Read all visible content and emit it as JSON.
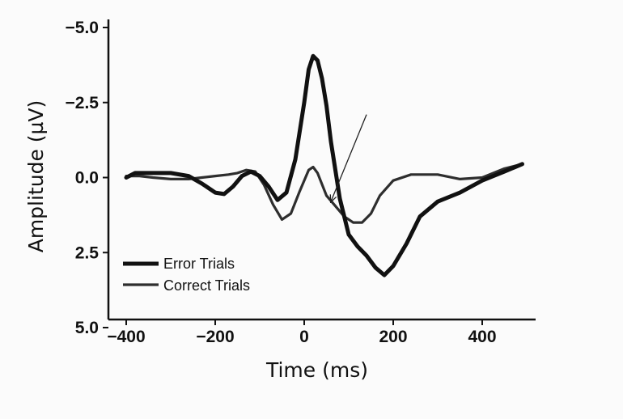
{
  "chart_data": {
    "type": "line",
    "xlabel": "Time (ms)",
    "ylabel": "Amplitude (µV)",
    "xlim": [
      -440,
      520
    ],
    "ylim": [
      -5.0,
      5.0
    ],
    "y_inverted": true,
    "x_ticks": [
      -400,
      -200,
      0,
      200,
      400
    ],
    "x_tick_labels": [
      "−400",
      "−200",
      "0",
      "200",
      "400"
    ],
    "y_ticks": [
      -5.0,
      -2.5,
      0.0,
      2.5,
      5.0
    ],
    "y_tick_labels": [
      "−5.0",
      "−2.5",
      "0.0",
      "2.5",
      "5.0"
    ],
    "grid": false,
    "legend_position": "bottom-left",
    "series": [
      {
        "name": "Error Trials",
        "color": "#111111",
        "stroke_weight": "thick",
        "x": [
          -400,
          -380,
          -350,
          -300,
          -260,
          -230,
          -200,
          -180,
          -160,
          -140,
          -120,
          -100,
          -80,
          -60,
          -40,
          -20,
          0,
          10,
          20,
          30,
          40,
          50,
          60,
          80,
          100,
          120,
          140,
          160,
          180,
          200,
          230,
          260,
          300,
          350,
          400,
          450,
          490
        ],
        "y": [
          0.0,
          -0.15,
          -0.15,
          -0.15,
          -0.05,
          0.2,
          0.5,
          0.55,
          0.3,
          -0.05,
          -0.2,
          -0.05,
          0.3,
          0.75,
          0.5,
          -0.6,
          -2.5,
          -3.6,
          -4.05,
          -3.9,
          -3.3,
          -2.4,
          -1.2,
          0.7,
          1.9,
          2.3,
          2.6,
          3.0,
          3.25,
          2.95,
          2.2,
          1.3,
          0.8,
          0.5,
          0.1,
          -0.2,
          -0.45
        ]
      },
      {
        "name": "Correct Trials",
        "color": "#2e2e2e",
        "stroke_weight": "thin",
        "x": [
          -400,
          -370,
          -340,
          -300,
          -260,
          -230,
          -200,
          -170,
          -150,
          -130,
          -110,
          -90,
          -70,
          -50,
          -30,
          -10,
          10,
          20,
          30,
          50,
          70,
          90,
          110,
          130,
          150,
          170,
          200,
          240,
          300,
          350,
          400,
          450,
          490
        ],
        "y": [
          -0.05,
          -0.05,
          0.0,
          0.05,
          0.05,
          0.0,
          -0.05,
          -0.1,
          -0.15,
          -0.25,
          -0.2,
          0.25,
          0.9,
          1.4,
          1.2,
          0.45,
          -0.25,
          -0.35,
          -0.15,
          0.6,
          0.95,
          1.3,
          1.5,
          1.5,
          1.2,
          0.6,
          0.1,
          -0.1,
          -0.1,
          0.05,
          0.0,
          -0.3,
          -0.45
        ]
      }
    ]
  },
  "annotation": {
    "type": "arrow",
    "from": [
      140,
      -2.1
    ],
    "to": [
      60,
      0.8
    ]
  }
}
